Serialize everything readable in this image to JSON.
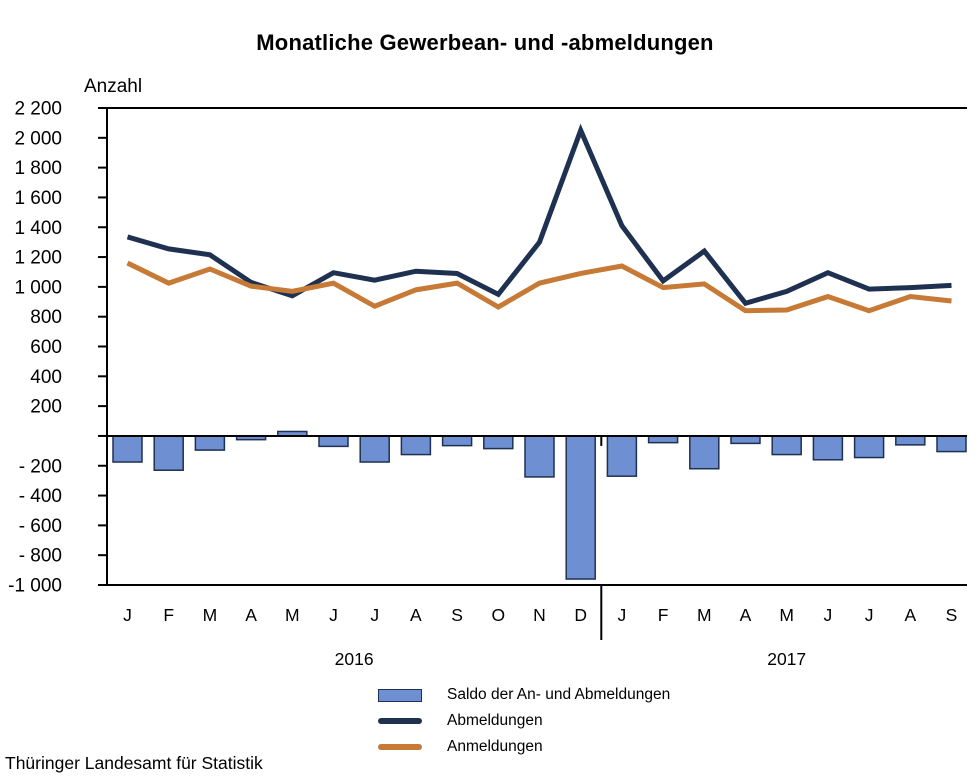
{
  "title": "Monatliche Gewerbean- und -abmeldungen",
  "y_axis_unit": "Anzahl",
  "source": "Thüringer Landesamt für Statistik",
  "chart_data": {
    "type": "combo",
    "x_months": [
      "J",
      "F",
      "M",
      "A",
      "M",
      "J",
      "J",
      "A",
      "S",
      "O",
      "N",
      "D",
      "J",
      "F",
      "M",
      "A",
      "M",
      "J",
      "J",
      "A",
      "S"
    ],
    "year_groups": [
      {
        "label": "2016",
        "months": 12
      },
      {
        "label": "2017",
        "months": 9
      }
    ],
    "y_axis": {
      "min": -1000,
      "max": 2200,
      "tick_step": 200,
      "tick_values": [
        2200,
        2000,
        1800,
        1600,
        1400,
        1200,
        1000,
        800,
        600,
        400,
        200,
        0,
        -200,
        -400,
        -600,
        -800,
        -1000
      ],
      "tick_labels": [
        "2 200",
        "2 000",
        "1 800",
        "1 600",
        "1 400",
        "1 200",
        "1 000",
        "800",
        "600",
        "400",
        "200",
        "",
        "- 200",
        "- 400",
        "- 600",
        "- 800",
        "-1 000"
      ],
      "zero_labeled": false
    },
    "grid": "off",
    "legend_position": "bottom",
    "series": [
      {
        "name": "Saldo der An- und Abmeldungen",
        "type": "bar",
        "color": "#6e8fd1",
        "border_color": "#1f3150",
        "values": [
          -175,
          -230,
          -95,
          -25,
          30,
          -70,
          -175,
          -125,
          -65,
          -85,
          -275,
          -960,
          -270,
          -45,
          -220,
          -50,
          -125,
          -160,
          -145,
          -60,
          -105
        ]
      },
      {
        "name": "Abmeldungen",
        "type": "line",
        "color": "#1f3150",
        "values": [
          1335,
          1255,
          1215,
          1030,
          940,
          1095,
          1045,
          1105,
          1090,
          950,
          1300,
          2050,
          1410,
          1040,
          1240,
          890,
          970,
          1095,
          985,
          995,
          1010
        ]
      },
      {
        "name": "Anmeldungen",
        "type": "line",
        "color": "#c67a36",
        "values": [
          1160,
          1025,
          1120,
          1005,
          970,
          1025,
          870,
          980,
          1025,
          865,
          1025,
          1090,
          1140,
          995,
          1020,
          840,
          845,
          935,
          840,
          935,
          905
        ]
      }
    ]
  }
}
